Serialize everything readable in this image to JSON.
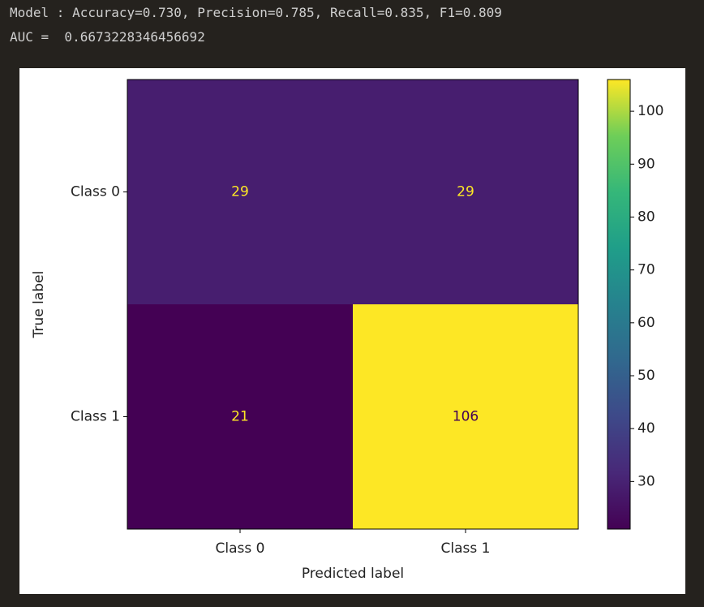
{
  "output": {
    "lines": [
      "Model : Accuracy=0.730, Precision=0.785, Recall=0.835, F1=0.809",
      "AUC =  0.6673228346456692"
    ]
  },
  "chart_data": {
    "type": "heatmap",
    "x_label": "Predicted label",
    "y_label": "True label",
    "x_categories": [
      "Class 0",
      "Class 1"
    ],
    "y_categories": [
      "Class 0",
      "Class 1"
    ],
    "values": [
      [
        29,
        29
      ],
      [
        21,
        106
      ]
    ],
    "colormap": "viridis",
    "clim": [
      21,
      106
    ],
    "cticks": [
      30,
      40,
      50,
      60,
      70,
      80,
      90,
      100
    ]
  }
}
